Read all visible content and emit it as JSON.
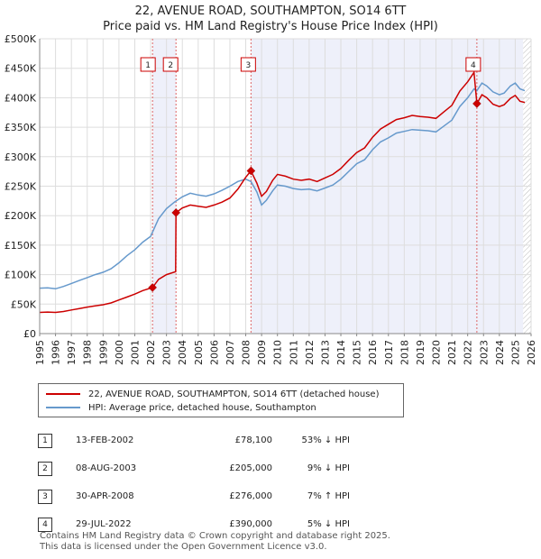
{
  "title": {
    "line1": "22, AVENUE ROAD, SOUTHAMPTON, SO14 6TT",
    "line2": "Price paid vs. HM Land Registry's House Price Index (HPI)"
  },
  "legend": {
    "items": [
      {
        "label": "22, AVENUE ROAD, SOUTHAMPTON, SO14 6TT (detached house)",
        "color": "#cc0000"
      },
      {
        "label": "HPI: Average price, detached house, Southampton",
        "color": "#6699cc"
      }
    ]
  },
  "sales": [
    {
      "num": "1",
      "date": "13-FEB-2002",
      "price": "£78,100",
      "hpi": "53% ↓ HPI"
    },
    {
      "num": "2",
      "date": "08-AUG-2003",
      "price": "£205,000",
      "hpi": "9% ↓ HPI"
    },
    {
      "num": "3",
      "date": "30-APR-2008",
      "price": "£276,000",
      "hpi": "7% ↑ HPI"
    },
    {
      "num": "4",
      "date": "29-JUL-2022",
      "price": "£390,000",
      "hpi": "5% ↓ HPI"
    }
  ],
  "footer": {
    "line1": "Contains HM Land Registry data © Crown copyright and database right 2025.",
    "line2": "This data is licensed under the Open Government Licence v3.0."
  },
  "chart_data": {
    "type": "line",
    "title": "22, AVENUE ROAD, SOUTHAMPTON, SO14 6TT — Price paid vs. HM Land Registry's House Price Index (HPI)",
    "xlabel": "",
    "ylabel": "",
    "xlim": [
      1995,
      2026
    ],
    "ylim": [
      0,
      500000
    ],
    "x_ticks": [
      "1995",
      "1996",
      "1997",
      "1998",
      "1999",
      "2000",
      "2001",
      "2002",
      "2003",
      "2004",
      "2005",
      "2006",
      "2007",
      "2008",
      "2009",
      "2010",
      "2011",
      "2012",
      "2013",
      "2014",
      "2015",
      "2016",
      "2017",
      "2018",
      "2019",
      "2020",
      "2021",
      "2022",
      "2023",
      "2024",
      "2025",
      "2026"
    ],
    "y_ticks": [
      {
        "value": 0,
        "label": "£0"
      },
      {
        "value": 50000,
        "label": "£50K"
      },
      {
        "value": 100000,
        "label": "£100K"
      },
      {
        "value": 150000,
        "label": "£150K"
      },
      {
        "value": 200000,
        "label": "£200K"
      },
      {
        "value": 250000,
        "label": "£250K"
      },
      {
        "value": 300000,
        "label": "£300K"
      },
      {
        "value": 350000,
        "label": "£350K"
      },
      {
        "value": 400000,
        "label": "£400K"
      },
      {
        "value": 450000,
        "label": "£450K"
      },
      {
        "value": 500000,
        "label": "£500K"
      }
    ],
    "grid": true,
    "colors": {
      "property": "#cc0000",
      "hpi": "#6699cc",
      "sale_line": "#dd6666",
      "shade": "#eef0fa"
    },
    "hatch_from": 2025.5,
    "series": [
      {
        "name": "HPI: Average price, detached house, Southampton",
        "color": "#6699cc",
        "points": [
          [
            1995.0,
            77000
          ],
          [
            1995.5,
            77500
          ],
          [
            1996.0,
            76000
          ],
          [
            1996.5,
            80000
          ],
          [
            1997.0,
            85000
          ],
          [
            1997.5,
            90000
          ],
          [
            1998.0,
            95000
          ],
          [
            1998.5,
            100000
          ],
          [
            1999.0,
            104000
          ],
          [
            1999.5,
            110000
          ],
          [
            2000.0,
            120000
          ],
          [
            2000.5,
            132000
          ],
          [
            2001.0,
            142000
          ],
          [
            2001.5,
            155000
          ],
          [
            2002.0,
            165000
          ],
          [
            2002.5,
            195000
          ],
          [
            2003.0,
            212000
          ],
          [
            2003.5,
            223000
          ],
          [
            2004.0,
            232000
          ],
          [
            2004.5,
            238000
          ],
          [
            2005.0,
            235000
          ],
          [
            2005.5,
            233000
          ],
          [
            2006.0,
            237000
          ],
          [
            2006.5,
            243000
          ],
          [
            2007.0,
            250000
          ],
          [
            2007.5,
            258000
          ],
          [
            2008.0,
            262000
          ],
          [
            2008.33,
            258000
          ],
          [
            2008.7,
            240000
          ],
          [
            2009.0,
            218000
          ],
          [
            2009.3,
            226000
          ],
          [
            2009.7,
            242000
          ],
          [
            2010.0,
            252000
          ],
          [
            2010.5,
            250000
          ],
          [
            2011.0,
            246000
          ],
          [
            2011.5,
            244000
          ],
          [
            2012.0,
            245000
          ],
          [
            2012.5,
            242000
          ],
          [
            2013.0,
            247000
          ],
          [
            2013.5,
            252000
          ],
          [
            2014.0,
            262000
          ],
          [
            2014.5,
            275000
          ],
          [
            2015.0,
            288000
          ],
          [
            2015.5,
            295000
          ],
          [
            2016.0,
            312000
          ],
          [
            2016.5,
            325000
          ],
          [
            2017.0,
            332000
          ],
          [
            2017.5,
            340000
          ],
          [
            2018.0,
            343000
          ],
          [
            2018.5,
            346000
          ],
          [
            2019.0,
            345000
          ],
          [
            2019.5,
            344000
          ],
          [
            2020.0,
            342000
          ],
          [
            2020.5,
            352000
          ],
          [
            2021.0,
            362000
          ],
          [
            2021.5,
            385000
          ],
          [
            2022.0,
            400000
          ],
          [
            2022.4,
            415000
          ],
          [
            2022.58,
            412000
          ],
          [
            2022.9,
            425000
          ],
          [
            2023.2,
            420000
          ],
          [
            2023.6,
            410000
          ],
          [
            2024.0,
            405000
          ],
          [
            2024.3,
            408000
          ],
          [
            2024.7,
            420000
          ],
          [
            2025.0,
            425000
          ],
          [
            2025.3,
            415000
          ],
          [
            2025.6,
            412000
          ]
        ]
      },
      {
        "name": "22, AVENUE ROAD, SOUTHAMPTON, SO14 6TT (detached house)",
        "color": "#cc0000",
        "points": [
          [
            1995.0,
            36000
          ],
          [
            1995.5,
            36500
          ],
          [
            1996.0,
            36000
          ],
          [
            1996.5,
            37500
          ],
          [
            1997.0,
            40000
          ],
          [
            1997.5,
            42500
          ],
          [
            1998.0,
            45000
          ],
          [
            1998.5,
            47000
          ],
          [
            1999.0,
            49000
          ],
          [
            1999.5,
            52000
          ],
          [
            2000.0,
            57000
          ],
          [
            2000.5,
            62000
          ],
          [
            2001.0,
            67000
          ],
          [
            2001.5,
            73000
          ],
          [
            2002.12,
            78100
          ],
          [
            2002.5,
            92000
          ],
          [
            2003.0,
            100000
          ],
          [
            2003.58,
            105000
          ],
          [
            2003.6,
            205000
          ],
          [
            2004.0,
            213000
          ],
          [
            2004.5,
            218000
          ],
          [
            2005.0,
            216000
          ],
          [
            2005.5,
            214000
          ],
          [
            2006.0,
            218000
          ],
          [
            2006.5,
            223000
          ],
          [
            2007.0,
            230000
          ],
          [
            2007.5,
            245000
          ],
          [
            2008.0,
            265000
          ],
          [
            2008.33,
            276000
          ],
          [
            2008.7,
            255000
          ],
          [
            2009.0,
            233000
          ],
          [
            2009.3,
            241000
          ],
          [
            2009.7,
            260000
          ],
          [
            2010.0,
            270000
          ],
          [
            2010.5,
            267000
          ],
          [
            2011.0,
            262000
          ],
          [
            2011.5,
            260000
          ],
          [
            2012.0,
            262000
          ],
          [
            2012.5,
            258000
          ],
          [
            2013.0,
            264000
          ],
          [
            2013.5,
            270000
          ],
          [
            2014.0,
            280000
          ],
          [
            2014.5,
            294000
          ],
          [
            2015.0,
            307000
          ],
          [
            2015.5,
            315000
          ],
          [
            2016.0,
            333000
          ],
          [
            2016.5,
            347000
          ],
          [
            2017.0,
            355000
          ],
          [
            2017.5,
            363000
          ],
          [
            2018.0,
            366000
          ],
          [
            2018.5,
            370000
          ],
          [
            2019.0,
            368000
          ],
          [
            2019.5,
            367000
          ],
          [
            2020.0,
            365000
          ],
          [
            2020.5,
            376000
          ],
          [
            2021.0,
            387000
          ],
          [
            2021.5,
            411000
          ],
          [
            2022.0,
            427000
          ],
          [
            2022.4,
            443000
          ],
          [
            2022.58,
            390000
          ],
          [
            2022.9,
            405000
          ],
          [
            2023.2,
            400000
          ],
          [
            2023.6,
            389000
          ],
          [
            2024.0,
            385000
          ],
          [
            2024.3,
            388000
          ],
          [
            2024.7,
            399000
          ],
          [
            2025.0,
            404000
          ],
          [
            2025.3,
            394000
          ],
          [
            2025.6,
            392000
          ]
        ]
      }
    ],
    "sales": [
      {
        "num": "1",
        "x": 2002.12,
        "y": 78100
      },
      {
        "num": "2",
        "x": 2003.6,
        "y": 205000
      },
      {
        "num": "3",
        "x": 2008.33,
        "y": 276000
      },
      {
        "num": "4",
        "x": 2022.58,
        "y": 390000
      }
    ]
  }
}
